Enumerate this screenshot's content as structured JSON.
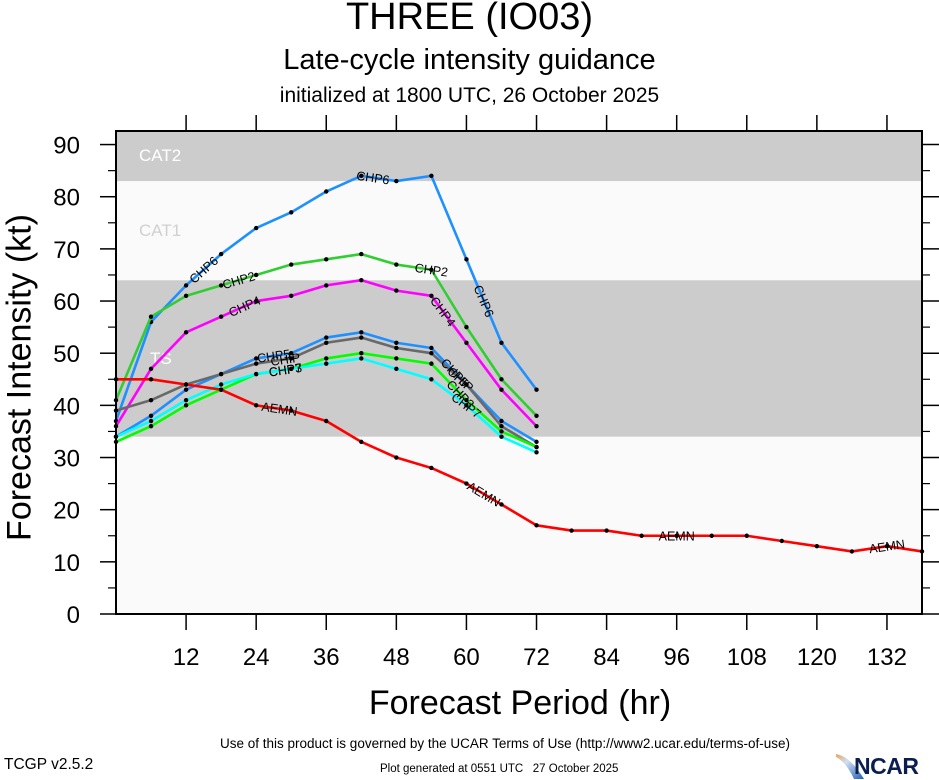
{
  "header": {
    "title": "THREE (IO03)",
    "subtitle": "Late-cycle intensity guidance",
    "init_line": "initialized at 1800 UTC, 26 October 2025"
  },
  "footer": {
    "terms": "Use of this product is governed by the UCAR Terms of Use (http://www2.ucar.edu/terms-of-use)",
    "generated": "Plot generated at 0551 UTC   27 October 2025",
    "version": "TCGP v2.5.2",
    "logo_text": "NCAR"
  },
  "colors": {
    "band_gray": "#cccccc",
    "band_light": "#fafafa",
    "band_label_light": "#ffffff",
    "band_label_dim": "#d0d0d0"
  },
  "chart_data": {
    "type": "line",
    "title": "THREE (IO03)",
    "subtitle": "Late-cycle intensity guidance",
    "xlabel": "Forecast Period (hr)",
    "ylabel": "Forecast Intensity (kt)",
    "xlim": [
      0,
      138
    ],
    "ylim": [
      0,
      90
    ],
    "xticks": [
      12,
      24,
      36,
      48,
      60,
      72,
      84,
      96,
      108,
      120,
      132
    ],
    "yticks": [
      0,
      10,
      20,
      30,
      40,
      50,
      60,
      70,
      80,
      90
    ],
    "grid": false,
    "legend": "none (inline curve labels)",
    "bands": [
      {
        "name": "TS",
        "from": 34,
        "to": 64,
        "shade": "gray"
      },
      {
        "name": "CAT1",
        "from": 64,
        "to": 83,
        "shade": "light"
      },
      {
        "name": "CAT2",
        "from": 83,
        "to": 96,
        "shade": "gray"
      }
    ],
    "series": [
      {
        "name": "CHP6",
        "color": "#1e90ff",
        "x": [
          0,
          6,
          12,
          18,
          24,
          30,
          36,
          42,
          48,
          54,
          60,
          66,
          72
        ],
        "y": [
          37,
          56,
          63,
          69,
          74,
          77,
          81,
          84,
          83,
          84,
          68,
          52,
          43
        ],
        "label_at": [
          15,
          44,
          63
        ]
      },
      {
        "name": "CHP2",
        "color": "#32cd32",
        "x": [
          0,
          6,
          12,
          18,
          24,
          30,
          36,
          42,
          48,
          54,
          60,
          66,
          72
        ],
        "y": [
          41,
          57,
          61,
          63,
          65,
          67,
          68,
          69,
          67,
          66,
          55,
          45,
          38
        ],
        "label_at": [
          21,
          54
        ]
      },
      {
        "name": "CHP4",
        "color": "#ff00ff",
        "x": [
          0,
          6,
          12,
          18,
          24,
          30,
          36,
          42,
          48,
          54,
          60,
          66,
          72
        ],
        "y": [
          36,
          47,
          54,
          57,
          60,
          61,
          63,
          64,
          62,
          61,
          52,
          43,
          36
        ],
        "label_at": [
          22,
          56
        ]
      },
      {
        "name": "CHP5",
        "color": "#1e90ff",
        "x": [
          0,
          6,
          12,
          18,
          24,
          30,
          36,
          42,
          48,
          54,
          60,
          66,
          72
        ],
        "y": [
          34,
          38,
          43,
          46,
          49,
          50,
          53,
          54,
          52,
          51,
          44,
          37,
          33
        ],
        "label_at": [
          27,
          58
        ]
      },
      {
        "name": "CHIP",
        "color": "#696969",
        "x": [
          0,
          6,
          12,
          18,
          24,
          30,
          36,
          42,
          48,
          54,
          60,
          66,
          72
        ],
        "y": [
          39,
          41,
          44,
          46,
          48,
          49,
          52,
          53,
          51,
          50,
          44,
          36,
          32
        ],
        "label_at": [
          29,
          59
        ]
      },
      {
        "name": "CHP3",
        "color": "#00ff00",
        "x": [
          0,
          6,
          12,
          18,
          24,
          30,
          36,
          42,
          48,
          54,
          60,
          66,
          72
        ],
        "y": [
          33,
          36,
          40,
          43,
          46,
          47,
          49,
          50,
          49,
          48,
          41,
          35,
          32
        ],
        "label_at": [
          29,
          59
        ]
      },
      {
        "name": "CHP7",
        "color": "#00ffff",
        "x": [
          0,
          6,
          12,
          18,
          24,
          30,
          36,
          42,
          48,
          54,
          60,
          66,
          72
        ],
        "y": [
          34,
          37,
          41,
          44,
          46,
          47,
          48,
          49,
          47,
          45,
          40,
          34,
          31
        ],
        "label_at": [
          29,
          60
        ]
      },
      {
        "name": "AEMN",
        "color": "#ff0000",
        "x": [
          0,
          6,
          12,
          18,
          24,
          30,
          36,
          42,
          48,
          54,
          60,
          66,
          72,
          78,
          84,
          90,
          96,
          102,
          108,
          114,
          120,
          126,
          132,
          138
        ],
        "y": [
          45,
          45,
          44,
          43,
          40,
          39,
          37,
          33,
          30,
          28,
          25,
          21,
          17,
          16,
          16,
          15,
          15,
          15,
          15,
          14,
          13,
          12,
          13,
          12
        ],
        "label_at": [
          28,
          63,
          96,
          132
        ]
      }
    ]
  }
}
